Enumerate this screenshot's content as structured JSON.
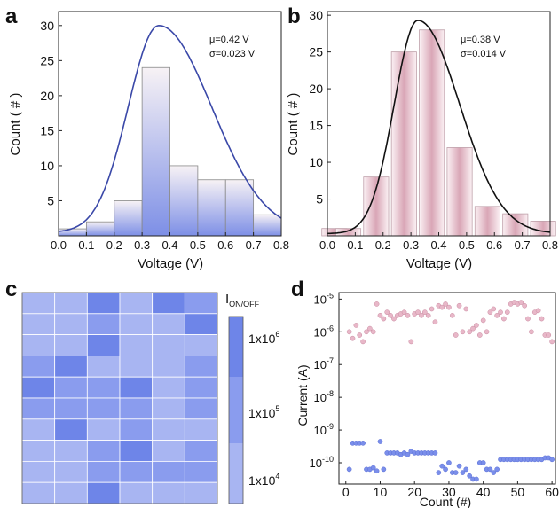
{
  "colors": {
    "a_fit": "#3a48a8",
    "a_bar_top": "#f7f2f5",
    "a_bar_bottom": "#7d8fe6",
    "b_fit": "#111111",
    "b_bar_light": "#fbf1f4",
    "b_bar_dark": "#d9a6b6",
    "heat_1e4": "#a8b5f2",
    "heat_1e5": "#8a9cee",
    "heat_1e6": "#6e85e8",
    "d_on": "#e8b7c8",
    "d_off": "#7a8eea"
  },
  "chart_data": [
    {
      "panel_label": "a",
      "type": "bar",
      "xlabel": "Voltage (V)",
      "ylabel": "Count ( # )",
      "xlim": [
        0,
        0.8
      ],
      "ylim": [
        0,
        32
      ],
      "xticks": [
        "0.0",
        "0.1",
        "0.2",
        "0.3",
        "0.4",
        "0.5",
        "0.6",
        "0.7",
        "0.8"
      ],
      "yticks": [
        "5",
        "10",
        "15",
        "20",
        "25",
        "30"
      ],
      "bins": [
        [
          0,
          0.1
        ],
        [
          0.1,
          0.2
        ],
        [
          0.2,
          0.3
        ],
        [
          0.3,
          0.4
        ],
        [
          0.4,
          0.5
        ],
        [
          0.5,
          0.6
        ],
        [
          0.6,
          0.7
        ],
        [
          0.7,
          0.8
        ]
      ],
      "values": [
        1,
        2,
        5,
        24,
        10,
        8,
        8,
        3
      ],
      "fit": {
        "mode": 0.36,
        "peak": 30,
        "left_width": 0.11,
        "right_width": 0.19,
        "base": 0.5
      },
      "annotations": [
        "μ=0.42 V",
        "σ=0.023 V"
      ]
    },
    {
      "panel_label": "b",
      "type": "bar",
      "xlabel": "Voltage (V)",
      "ylabel": "Count ( # )",
      "xlim": [
        0,
        0.8
      ],
      "ylim": [
        0,
        30.5
      ],
      "xticks": [
        "0.0",
        "0.1",
        "0.2",
        "0.3",
        "0.4",
        "0.5",
        "0.6",
        "0.7",
        "0.8"
      ],
      "yticks": [
        "5",
        "10",
        "15",
        "20",
        "25",
        "30"
      ],
      "bin_centers": [
        0.025,
        0.075,
        0.175,
        0.275,
        0.375,
        0.475,
        0.575,
        0.675,
        0.775
      ],
      "bar_width": 0.09,
      "values": [
        1,
        1,
        8,
        25,
        28,
        12,
        4,
        3,
        2
      ],
      "fit": {
        "mode": 0.325,
        "peak": 29.3,
        "left_width": 0.085,
        "right_width": 0.15,
        "base": 0.3
      },
      "annotations": [
        "μ=0.38 V",
        "σ=0.014 V"
      ]
    },
    {
      "panel_label": "c",
      "type": "heatmap",
      "rows": 10,
      "cols": 6,
      "levels": [
        [
          1,
          1,
          3,
          1,
          3,
          2
        ],
        [
          1,
          1,
          2,
          1,
          1,
          3
        ],
        [
          1,
          1,
          3,
          1,
          1,
          1
        ],
        [
          2,
          3,
          1,
          1,
          1,
          2
        ],
        [
          3,
          2,
          2,
          3,
          1,
          2
        ],
        [
          2,
          2,
          2,
          2,
          1,
          2
        ],
        [
          1,
          3,
          1,
          2,
          1,
          1
        ],
        [
          1,
          1,
          2,
          3,
          1,
          2
        ],
        [
          1,
          1,
          2,
          2,
          2,
          2
        ],
        [
          1,
          1,
          3,
          1,
          1,
          1
        ]
      ],
      "colorbar_title": "I",
      "colorbar_sub": "ON/OFF",
      "colorbar_ticks": [
        "1x10",
        "1x10",
        "1x10"
      ],
      "colorbar_exps": [
        "6",
        "5",
        "4"
      ]
    },
    {
      "panel_label": "d",
      "type": "scatter",
      "xlabel": "Count (#)",
      "ylabel": "Current (A)",
      "xlim": [
        -2,
        61
      ],
      "ylog": true,
      "ylim_log10": [
        -10.65,
        -4.8
      ],
      "xticks": [
        "0",
        "10",
        "20",
        "30",
        "40",
        "50",
        "60"
      ],
      "yticks_base": "10",
      "yticks_exp": [
        "-10",
        "-9",
        "-8",
        "-7",
        "-6",
        "-5"
      ],
      "series": [
        {
          "x": [
            1,
            2,
            3,
            4,
            5,
            6,
            7,
            8,
            9,
            10,
            11,
            12,
            13,
            14,
            15,
            16,
            17,
            18,
            19,
            20,
            21,
            22,
            23,
            24,
            25,
            26,
            27,
            28,
            29,
            30,
            31,
            32,
            33,
            34,
            35,
            36,
            37,
            38,
            39,
            40,
            41,
            42,
            43,
            44,
            45,
            46,
            47,
            48,
            49,
            50,
            51,
            52,
            53,
            54,
            55,
            56,
            57,
            58,
            59,
            60
          ],
          "y_log10": [
            -6.0,
            -6.2,
            -5.8,
            -6.1,
            -6.3,
            -6.0,
            -5.9,
            -6.0,
            -5.15,
            -5.5,
            -5.6,
            -5.4,
            -5.5,
            -5.6,
            -5.5,
            -5.45,
            -5.4,
            -5.5,
            -6.3,
            -5.45,
            -5.4,
            -5.5,
            -5.4,
            -5.5,
            -5.3,
            -5.7,
            -5.2,
            -5.25,
            -5.15,
            -5.25,
            -5.5,
            -6.1,
            -5.2,
            -6.0,
            -5.3,
            -6.0,
            -5.9,
            -5.8,
            -6.1,
            -5.65,
            -6.0,
            -5.4,
            -5.3,
            -5.5,
            -5.4,
            -5.6,
            -5.4,
            -5.15,
            -5.1,
            -5.15,
            -5.1,
            -5.2,
            -5.6,
            -6.0,
            -5.4,
            -5.35,
            -5.6,
            -6.1,
            -6.1,
            -6.3
          ]
        },
        {
          "x": [
            1,
            2,
            3,
            4,
            5,
            6,
            7,
            8,
            9,
            10,
            11,
            12,
            13,
            14,
            15,
            16,
            17,
            18,
            19,
            20,
            21,
            22,
            23,
            24,
            25,
            26,
            27,
            28,
            29,
            30,
            31,
            32,
            33,
            34,
            35,
            36,
            37,
            38,
            39,
            40,
            41,
            42,
            43,
            44,
            45,
            46,
            47,
            48,
            49,
            50,
            51,
            52,
            53,
            54,
            55,
            56,
            57,
            58,
            59,
            60
          ],
          "y_log10": [
            -10.2,
            -9.4,
            -9.4,
            -9.4,
            -9.4,
            -10.2,
            -10.2,
            -10.15,
            -10.25,
            -9.35,
            -10.2,
            -9.7,
            -9.7,
            -9.7,
            -9.7,
            -9.75,
            -9.7,
            -9.75,
            -9.65,
            -9.7,
            -9.7,
            -9.7,
            -9.7,
            -9.7,
            -9.7,
            -9.7,
            -10.3,
            -10.1,
            -10.2,
            -10.0,
            -10.3,
            -10.3,
            -10.1,
            -10.3,
            -10.2,
            -10.4,
            -10.5,
            -10.5,
            -10.0,
            -10.0,
            -10.2,
            -10.2,
            -10.3,
            -10.2,
            -9.9,
            -9.9,
            -9.9,
            -9.9,
            -9.9,
            -9.9,
            -9.9,
            -9.9,
            -9.9,
            -9.9,
            -9.9,
            -9.9,
            -9.9,
            -9.85,
            -9.85,
            -9.9
          ]
        }
      ]
    }
  ]
}
